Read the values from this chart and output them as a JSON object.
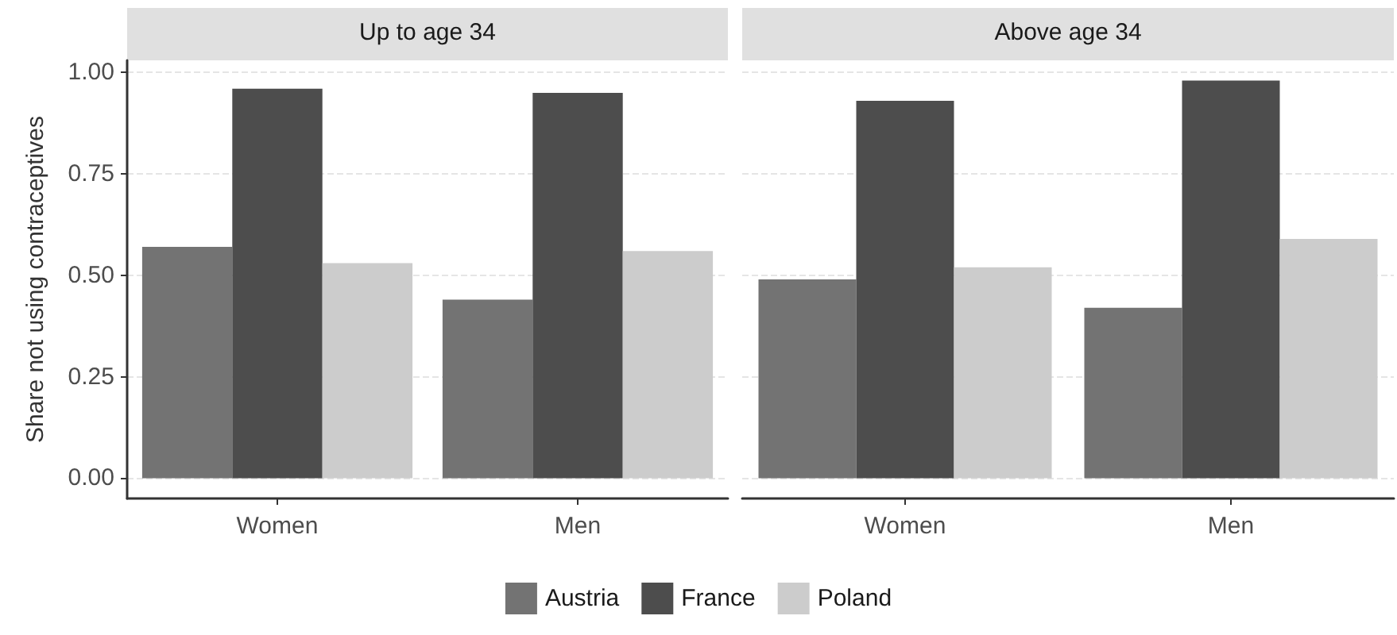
{
  "chart_data": [
    {
      "type": "bar",
      "title": "Up to age 34",
      "ylabel": "Share not using contraceptives",
      "categories": [
        "Women",
        "Men"
      ],
      "series": [
        {
          "name": "Austria",
          "color": "#737373",
          "values": [
            0.57,
            0.44
          ]
        },
        {
          "name": "France",
          "color": "#4d4d4d",
          "values": [
            0.96,
            0.95
          ]
        },
        {
          "name": "Poland",
          "color": "#cccccc",
          "values": [
            0.53,
            0.56
          ]
        }
      ],
      "ylim": [
        -0.05,
        1.03
      ],
      "yticks": [
        {
          "value": 0,
          "label": "0.00"
        },
        {
          "value": 0.25,
          "label": "0.25"
        },
        {
          "value": 0.5,
          "label": "0.50"
        },
        {
          "value": 0.75,
          "label": "0.75"
        },
        {
          "value": 1,
          "label": "1.00"
        }
      ],
      "grid": "y",
      "legend": "bottom"
    },
    {
      "type": "bar",
      "title": "Above age 34",
      "categories": [
        "Women",
        "Men"
      ],
      "series": [
        {
          "color": "#737373",
          "values": [
            0.49,
            0.42
          ]
        },
        {
          "color": "#4d4d4d",
          "values": [
            0.93,
            0.98
          ]
        },
        {
          "color": "#cccccc",
          "values": [
            0.52,
            0.59
          ]
        }
      ],
      "yticks": [
        0,
        0.25,
        0.5,
        0.75,
        1
      ],
      "grid": "y",
      "tick_labels": "x"
    }
  ]
}
